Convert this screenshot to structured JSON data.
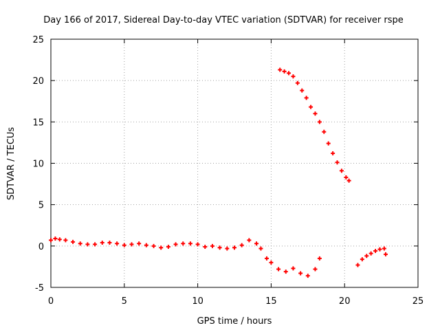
{
  "chart_data": {
    "type": "scatter",
    "title": "Day 166 of 2017, Sidereal Day-to-day VTEC variation (SDTVAR) for receiver rspe",
    "xlabel": "GPS time / hours",
    "ylabel": "SDTVAR / TECUs",
    "xlim": [
      0,
      25
    ],
    "ylim": [
      -5,
      25
    ],
    "xticks": [
      "0",
      "5",
      "10",
      "15",
      "20",
      "25"
    ],
    "yticks": [
      "-5",
      "0",
      "5",
      "10",
      "15",
      "20",
      "25"
    ],
    "grid": true,
    "marker": "plus",
    "color": "#ff0000",
    "series": [
      {
        "name": "SDTVAR",
        "points": [
          [
            0.0,
            0.7
          ],
          [
            0.3,
            0.9
          ],
          [
            0.6,
            0.8
          ],
          [
            1.0,
            0.7
          ],
          [
            1.5,
            0.5
          ],
          [
            2.0,
            0.3
          ],
          [
            2.5,
            0.2
          ],
          [
            3.0,
            0.2
          ],
          [
            3.5,
            0.4
          ],
          [
            4.0,
            0.4
          ],
          [
            4.5,
            0.3
          ],
          [
            5.0,
            0.1
          ],
          [
            5.5,
            0.2
          ],
          [
            6.0,
            0.3
          ],
          [
            6.5,
            0.1
          ],
          [
            7.0,
            0.0
          ],
          [
            7.5,
            -0.2
          ],
          [
            8.0,
            -0.1
          ],
          [
            8.5,
            0.2
          ],
          [
            9.0,
            0.3
          ],
          [
            9.5,
            0.3
          ],
          [
            10.0,
            0.2
          ],
          [
            10.5,
            -0.1
          ],
          [
            11.0,
            0.0
          ],
          [
            11.5,
            -0.2
          ],
          [
            12.0,
            -0.3
          ],
          [
            12.5,
            -0.2
          ],
          [
            13.0,
            0.1
          ],
          [
            13.5,
            0.7
          ],
          [
            14.0,
            0.3
          ],
          [
            14.3,
            -0.3
          ],
          [
            14.7,
            -1.5
          ],
          [
            15.0,
            -2.0
          ],
          [
            15.5,
            -2.8
          ],
          [
            16.0,
            -3.1
          ],
          [
            16.5,
            -2.7
          ],
          [
            17.0,
            -3.3
          ],
          [
            17.5,
            -3.6
          ],
          [
            18.0,
            -2.8
          ],
          [
            18.3,
            -1.5
          ],
          [
            15.6,
            21.3
          ],
          [
            15.9,
            21.1
          ],
          [
            16.2,
            20.9
          ],
          [
            16.5,
            20.5
          ],
          [
            16.8,
            19.7
          ],
          [
            17.1,
            18.8
          ],
          [
            17.4,
            17.9
          ],
          [
            17.7,
            16.8
          ],
          [
            18.0,
            16.0
          ],
          [
            18.3,
            15.0
          ],
          [
            18.6,
            13.8
          ],
          [
            18.9,
            12.4
          ],
          [
            19.2,
            11.2
          ],
          [
            19.5,
            10.1
          ],
          [
            19.8,
            9.1
          ],
          [
            20.1,
            8.3
          ],
          [
            20.3,
            7.9
          ],
          [
            20.9,
            -2.3
          ],
          [
            21.2,
            -1.6
          ],
          [
            21.5,
            -1.2
          ],
          [
            21.8,
            -0.9
          ],
          [
            22.1,
            -0.6
          ],
          [
            22.4,
            -0.4
          ],
          [
            22.7,
            -0.3
          ],
          [
            22.8,
            -1.0
          ]
        ]
      }
    ]
  }
}
